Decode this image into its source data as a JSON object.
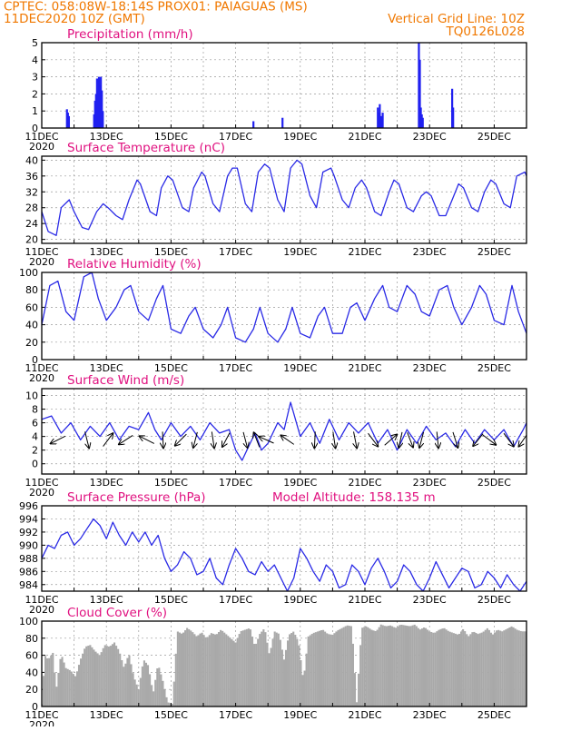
{
  "header": {
    "line1_left": "CPTEC:   058:08W-18:14S   PROX01: PAIAGUAS (MS)",
    "line2_left": "11DEC2020 10Z (GMT)",
    "line2_right": "Vertical Grid Line: 10Z",
    "line3_right": "TQ0126L028"
  },
  "colors": {
    "line": "#2a2ae6",
    "bar": "#2020f0",
    "cloud": "#a9a9a9",
    "title": "#e0107f",
    "header": "#f07800"
  },
  "x_axis": {
    "labels": [
      "11DEC",
      "13DEC",
      "15DEC",
      "17DEC",
      "19DEC",
      "21DEC",
      "23DEC",
      "25DEC"
    ],
    "year_label": "2020",
    "start_day": 11,
    "end_day": 26
  },
  "chart_data": [
    {
      "id": "precip",
      "type": "bar",
      "title": "Precipitation (mm/h)",
      "ylim": [
        0,
        5
      ],
      "yticks": [
        0,
        1,
        2,
        3,
        4,
        5
      ],
      "x": [
        11.78,
        11.81,
        11.84,
        12.62,
        12.65,
        12.68,
        12.71,
        12.74,
        12.77,
        12.8,
        12.83,
        12.86,
        12.89,
        17.55,
        18.45,
        21.4,
        21.43,
        21.46,
        21.49,
        21.52,
        21.55,
        22.67,
        22.7,
        22.73,
        22.76,
        22.79,
        23.7,
        23.73
      ],
      "values": [
        1.1,
        0.9,
        0.7,
        0.8,
        1.6,
        2.0,
        2.9,
        2.2,
        3.0,
        2.5,
        3.0,
        2.2,
        1.0,
        0.4,
        0.6,
        1.2,
        0.9,
        1.4,
        0.7,
        0.6,
        0.9,
        5.0,
        4.0,
        1.2,
        0.8,
        0.6,
        2.3,
        1.2
      ]
    },
    {
      "id": "temp",
      "type": "line",
      "title": "Surface Temperature (nC)",
      "ylim": [
        19,
        41
      ],
      "yticks": [
        20,
        24,
        28,
        32,
        36,
        40
      ],
      "x": [
        11.0,
        11.2,
        11.45,
        11.6,
        11.85,
        12.0,
        12.25,
        12.45,
        12.7,
        12.9,
        13.05,
        13.3,
        13.5,
        13.7,
        13.95,
        14.05,
        14.35,
        14.55,
        14.7,
        14.9,
        15.05,
        15.35,
        15.55,
        15.7,
        15.95,
        16.05,
        16.3,
        16.5,
        16.75,
        16.9,
        17.05,
        17.3,
        17.5,
        17.7,
        17.9,
        18.05,
        18.3,
        18.5,
        18.7,
        18.9,
        19.05,
        19.3,
        19.5,
        19.7,
        19.95,
        20.05,
        20.3,
        20.5,
        20.7,
        20.9,
        21.05,
        21.3,
        21.5,
        21.75,
        21.9,
        22.05,
        22.3,
        22.5,
        22.75,
        22.9,
        23.05,
        23.3,
        23.5,
        23.75,
        23.9,
        24.05,
        24.3,
        24.5,
        24.7,
        24.9,
        25.05,
        25.3,
        25.5,
        25.7,
        25.95,
        26.0
      ],
      "values": [
        27,
        22,
        21,
        28,
        30,
        27,
        23,
        22.5,
        27,
        29,
        28,
        26,
        25,
        30,
        35,
        34,
        27,
        26,
        33,
        36,
        35,
        28,
        27,
        33,
        37,
        36,
        29,
        27,
        36,
        38,
        38,
        29,
        27,
        37,
        39,
        38,
        30,
        27,
        38,
        40,
        39,
        31,
        28,
        37,
        38,
        36,
        30,
        28,
        33,
        35,
        33,
        27,
        26,
        32,
        35,
        34,
        28,
        27,
        31,
        32,
        31,
        26,
        26,
        31,
        34,
        33,
        28,
        27,
        32,
        35,
        34,
        29,
        28,
        36,
        37,
        36
      ]
    },
    {
      "id": "rh",
      "type": "line",
      "title": "Relative Humidity (%)",
      "ylim": [
        0,
        100
      ],
      "yticks": [
        0,
        20,
        40,
        60,
        80,
        100
      ],
      "x": [
        11.0,
        11.25,
        11.5,
        11.75,
        12.0,
        12.3,
        12.55,
        12.75,
        13.0,
        13.3,
        13.55,
        13.75,
        14.0,
        14.3,
        14.55,
        14.75,
        15.0,
        15.3,
        15.55,
        15.75,
        16.0,
        16.3,
        16.55,
        16.75,
        17.0,
        17.3,
        17.55,
        17.75,
        18.0,
        18.3,
        18.55,
        18.75,
        19.0,
        19.3,
        19.55,
        19.75,
        20.0,
        20.3,
        20.55,
        20.75,
        21.0,
        21.3,
        21.55,
        21.75,
        22.0,
        22.3,
        22.55,
        22.75,
        23.0,
        23.3,
        23.55,
        23.75,
        24.0,
        24.3,
        24.55,
        24.75,
        25.0,
        25.3,
        25.55,
        25.75,
        26.0
      ],
      "values": [
        40,
        85,
        90,
        55,
        45,
        95,
        100,
        70,
        45,
        60,
        80,
        85,
        55,
        45,
        70,
        85,
        35,
        30,
        50,
        60,
        35,
        25,
        40,
        60,
        25,
        20,
        35,
        60,
        30,
        20,
        35,
        60,
        30,
        25,
        50,
        60,
        30,
        30,
        60,
        65,
        45,
        70,
        85,
        60,
        55,
        85,
        75,
        55,
        50,
        80,
        85,
        60,
        40,
        60,
        85,
        75,
        45,
        40,
        85,
        55,
        30
      ]
    },
    {
      "id": "wind",
      "type": "line",
      "title": "Surface Wind (m/s)",
      "ylim": [
        -1.5,
        11
      ],
      "yticks": [
        0,
        2,
        4,
        6,
        8,
        10
      ],
      "x": [
        11.0,
        11.3,
        11.6,
        11.9,
        12.2,
        12.5,
        12.8,
        13.1,
        13.4,
        13.7,
        14.0,
        14.3,
        14.5,
        14.7,
        15.0,
        15.3,
        15.6,
        15.9,
        16.2,
        16.5,
        16.8,
        17.0,
        17.2,
        17.4,
        17.6,
        17.8,
        18.0,
        18.3,
        18.5,
        18.7,
        19.0,
        19.3,
        19.6,
        19.9,
        20.2,
        20.5,
        20.8,
        21.1,
        21.4,
        21.7,
        22.0,
        22.3,
        22.6,
        22.9,
        23.2,
        23.5,
        23.8,
        24.1,
        24.4,
        24.7,
        25.0,
        25.3,
        25.6,
        25.9,
        26.0
      ],
      "values": [
        6.5,
        7,
        4.5,
        6,
        3.5,
        5.5,
        4,
        6,
        3.5,
        5.5,
        5,
        7.5,
        5,
        3.5,
        6,
        4,
        5.5,
        3.5,
        6,
        4.5,
        5,
        2,
        0.5,
        2.5,
        4.5,
        2,
        3,
        6,
        5,
        9,
        4,
        6,
        3,
        6.5,
        3.5,
        6,
        4.5,
        6,
        3,
        5,
        2,
        5,
        3,
        5.5,
        3.5,
        4.5,
        2.5,
        5,
        3,
        5,
        3.5,
        5,
        2.5,
        5,
        6
      ],
      "arrows": [
        {
          "x": 11.5,
          "u": -0.9,
          "v": -0.45
        },
        {
          "x": 12.4,
          "u": 0.25,
          "v": -1.0
        },
        {
          "x": 13.05,
          "u": 0.6,
          "v": 0.8
        },
        {
          "x": 13.6,
          "u": -0.85,
          "v": -0.55
        },
        {
          "x": 14.25,
          "u": -0.9,
          "v": 0.45
        },
        {
          "x": 14.75,
          "u": 0.05,
          "v": -1.0
        },
        {
          "x": 15.3,
          "u": -0.7,
          "v": -0.7
        },
        {
          "x": 15.75,
          "u": -0.25,
          "v": -0.95
        },
        {
          "x": 16.3,
          "u": 0.15,
          "v": -1.0
        },
        {
          "x": 16.7,
          "u": -0.45,
          "v": -0.85
        },
        {
          "x": 17.3,
          "u": 0.25,
          "v": -0.95
        },
        {
          "x": 17.65,
          "u": -0.35,
          "v": 0.9
        },
        {
          "x": 17.95,
          "u": -0.9,
          "v": 0.4
        },
        {
          "x": 18.6,
          "u": -0.8,
          "v": 0.55
        },
        {
          "x": 19.45,
          "u": -0.05,
          "v": -1.0
        },
        {
          "x": 20.05,
          "u": 0.15,
          "v": -1.0
        },
        {
          "x": 20.7,
          "u": 0.2,
          "v": -1.0
        },
        {
          "x": 21.25,
          "u": 0.6,
          "v": -0.8
        },
        {
          "x": 21.8,
          "u": 0.75,
          "v": 0.65
        },
        {
          "x": 22.1,
          "u": -0.2,
          "v": -0.95
        },
        {
          "x": 22.4,
          "u": 0.35,
          "v": -0.9
        },
        {
          "x": 22.75,
          "u": -0.25,
          "v": -0.95
        },
        {
          "x": 23.25,
          "u": 0.1,
          "v": -1.0
        },
        {
          "x": 23.8,
          "u": 0.3,
          "v": -0.95
        },
        {
          "x": 24.5,
          "u": -0.6,
          "v": -0.75
        },
        {
          "x": 24.85,
          "u": 0.8,
          "v": -0.6
        },
        {
          "x": 25.45,
          "u": 0.6,
          "v": -0.8
        },
        {
          "x": 25.9,
          "u": -0.55,
          "v": -0.8
        }
      ]
    },
    {
      "id": "pres",
      "type": "line",
      "title": "Surface Pressure (hPa)",
      "annotation": "Model Altitude: 158.135 m",
      "ylim": [
        983,
        996
      ],
      "yticks": [
        984,
        986,
        988,
        990,
        992,
        994,
        996
      ],
      "x": [
        11.0,
        11.2,
        11.4,
        11.6,
        11.8,
        12.0,
        12.2,
        12.4,
        12.6,
        12.8,
        13.0,
        13.2,
        13.4,
        13.6,
        13.8,
        14.0,
        14.2,
        14.4,
        14.6,
        14.8,
        15.0,
        15.2,
        15.4,
        15.6,
        15.8,
        16.0,
        16.2,
        16.4,
        16.6,
        16.8,
        17.0,
        17.2,
        17.4,
        17.6,
        17.8,
        18.0,
        18.2,
        18.4,
        18.6,
        18.8,
        19.0,
        19.2,
        19.4,
        19.6,
        19.8,
        20.0,
        20.2,
        20.4,
        20.6,
        20.8,
        21.0,
        21.2,
        21.4,
        21.6,
        21.8,
        22.0,
        22.2,
        22.4,
        22.6,
        22.8,
        23.0,
        23.2,
        23.4,
        23.6,
        23.8,
        24.0,
        24.2,
        24.4,
        24.6,
        24.8,
        25.0,
        25.2,
        25.4,
        25.6,
        25.8,
        26.0
      ],
      "values": [
        988,
        990,
        989.5,
        991.5,
        992,
        990,
        991,
        992.5,
        994,
        993,
        991,
        993.5,
        991.5,
        990,
        992,
        990.5,
        992,
        990,
        991.5,
        988,
        986,
        987,
        989,
        988,
        985.5,
        986,
        988,
        985,
        984,
        987,
        989.5,
        988,
        986,
        985.5,
        987.5,
        986,
        987,
        985,
        983,
        985,
        989.5,
        988,
        986,
        984.5,
        987,
        986,
        983.5,
        984,
        987,
        986,
        984,
        986.5,
        988,
        986,
        983.5,
        984.5,
        987,
        986,
        984,
        983,
        985,
        987.5,
        985.5,
        983.5,
        985,
        986.5,
        986,
        983.5,
        984,
        986,
        985,
        983.5,
        985.5,
        984,
        983,
        984.5
      ]
    },
    {
      "id": "cloud",
      "type": "area",
      "title": "Cloud Cover (%)",
      "ylim": [
        0,
        100
      ],
      "yticks": [
        0,
        20,
        40,
        60,
        80,
        100
      ],
      "x": [
        11.0,
        11.1,
        11.2,
        11.35,
        11.45,
        11.6,
        11.75,
        11.9,
        12.05,
        12.2,
        12.35,
        12.5,
        12.65,
        12.8,
        12.95,
        13.1,
        13.25,
        13.4,
        13.55,
        13.7,
        13.85,
        14.0,
        14.15,
        14.3,
        14.45,
        14.6,
        14.75,
        14.9,
        15.05,
        15.2,
        15.35,
        15.5,
        15.65,
        15.8,
        15.95,
        16.1,
        16.25,
        16.4,
        16.55,
        16.7,
        16.85,
        17.0,
        17.15,
        17.3,
        17.45,
        17.6,
        17.75,
        17.9,
        18.05,
        18.2,
        18.35,
        18.5,
        18.65,
        18.8,
        18.95,
        19.1,
        19.25,
        19.4,
        19.55,
        19.7,
        19.85,
        20.0,
        20.15,
        20.3,
        20.45,
        20.6,
        20.75,
        20.9,
        21.05,
        21.2,
        21.35,
        21.5,
        21.65,
        21.8,
        21.95,
        22.1,
        22.25,
        22.4,
        22.55,
        22.7,
        22.85,
        23.0,
        23.15,
        23.3,
        23.45,
        23.6,
        23.75,
        23.9,
        24.05,
        24.2,
        24.35,
        24.5,
        24.65,
        24.8,
        24.95,
        25.1,
        25.25,
        25.4,
        25.55,
        25.7,
        25.85,
        26.0
      ],
      "values": [
        3,
        60,
        55,
        63,
        20,
        62,
        45,
        42,
        35,
        55,
        70,
        72,
        65,
        60,
        72,
        70,
        75,
        65,
        45,
        62,
        35,
        20,
        55,
        48,
        15,
        50,
        30,
        5,
        3,
        88,
        85,
        92,
        88,
        82,
        87,
        80,
        86,
        84,
        90,
        85,
        80,
        75,
        88,
        90,
        92,
        70,
        85,
        92,
        60,
        88,
        85,
        55,
        84,
        88,
        75,
        30,
        82,
        86,
        88,
        90,
        85,
        84,
        89,
        92,
        95,
        94,
        5,
        92,
        94,
        90,
        88,
        96,
        94,
        95,
        92,
        96,
        95,
        94,
        96,
        90,
        93,
        88,
        86,
        90,
        92,
        88,
        86,
        84,
        91,
        82,
        88,
        85,
        87,
        92,
        84,
        90,
        88,
        91,
        94,
        90,
        88,
        88
      ]
    }
  ]
}
